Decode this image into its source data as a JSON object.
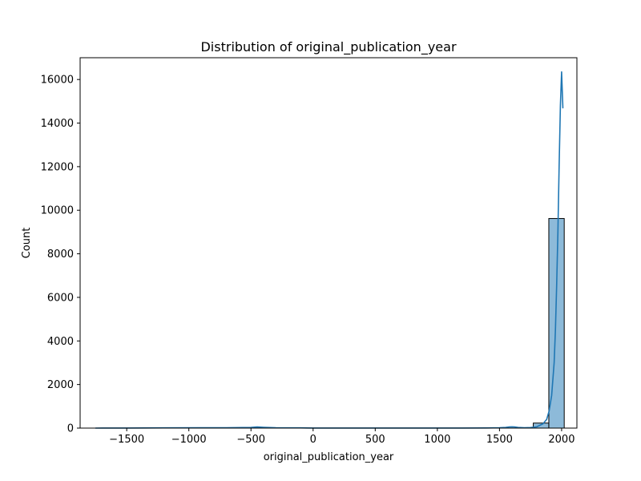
{
  "chart_data": {
    "type": "bar",
    "title": "Distribution of original_publication_year",
    "xlabel": "original_publication_year",
    "ylabel": "Count",
    "xlim": [
      -1875,
      2123
    ],
    "ylim": [
      0,
      17000
    ],
    "xticks": [
      -1500,
      -1000,
      -500,
      0,
      500,
      1000,
      1500,
      2000
    ],
    "xtick_labels": [
      "−1500",
      "−1000",
      "−500",
      "0",
      "500",
      "1000",
      "1500",
      "2000"
    ],
    "yticks": [
      0,
      2000,
      4000,
      6000,
      8000,
      10000,
      12000,
      14000,
      16000
    ],
    "ytick_labels": [
      "0",
      "2000",
      "4000",
      "6000",
      "8000",
      "10000",
      "12000",
      "14000",
      "16000"
    ],
    "bins": [
      {
        "x0": 1772,
        "x1": 1897,
        "count": 230
      },
      {
        "x0": 1897,
        "x1": 2021,
        "count": 9620
      }
    ],
    "kde": {
      "x": [
        -1750,
        -1500,
        -1200,
        -900,
        -700,
        -500,
        -450,
        -400,
        -300,
        -100,
        0,
        200,
        400,
        600,
        800,
        1000,
        1200,
        1400,
        1500,
        1550,
        1580,
        1600,
        1620,
        1650,
        1700,
        1750,
        1800,
        1850,
        1880,
        1900,
        1920,
        1940,
        1950,
        1960,
        1970,
        1980,
        1990,
        2000,
        2010
      ],
      "y": [
        0,
        5,
        10,
        15,
        20,
        30,
        50,
        35,
        20,
        10,
        5,
        5,
        5,
        5,
        5,
        5,
        5,
        8,
        15,
        30,
        50,
        60,
        50,
        30,
        20,
        25,
        60,
        200,
        400,
        800,
        1500,
        3000,
        4500,
        6500,
        9000,
        12000,
        14800,
        16350,
        14700
      ]
    },
    "bar_color": "#8dbad9",
    "bar_edge_color": "#000000",
    "line_color": "#1f77b4",
    "grid": false,
    "legend": "none"
  }
}
